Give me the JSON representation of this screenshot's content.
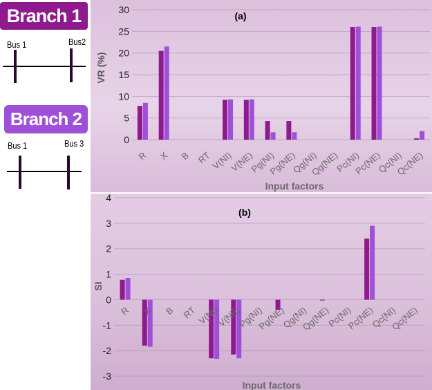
{
  "diagram": {
    "branch1": {
      "title": "Branch 1",
      "bus_left": "Bus 1",
      "bus_right": "Bus2",
      "color": "#8e1a8e"
    },
    "branch2": {
      "title": "Branch 2",
      "bus_left": "Bus 1",
      "bus_right": "Bus 3",
      "color": "#9f4fd8"
    }
  },
  "chart_data": [
    {
      "type": "bar",
      "title": "(a)",
      "xlabel": "Input factors",
      "ylabel": "VR (%)",
      "ylim": [
        0,
        30
      ],
      "yticks": [
        "0",
        "5",
        "10",
        "15",
        "20",
        "25",
        "30"
      ],
      "categories": [
        "R",
        "X",
        "B",
        "RT",
        "V(NI)",
        "V(NE)",
        "Pg(NI)",
        "Pg(NE)",
        "Qg(NI)",
        "Qg(NE)",
        "Pc(NI)",
        "Pc(NE)",
        "Qc(NI)",
        "Qc(NE)"
      ],
      "series": [
        {
          "name": "Branch 1",
          "color": "#8e1a8e",
          "values": [
            7.8,
            20.5,
            0,
            0,
            9.2,
            9.2,
            4.3,
            4.3,
            0,
            0,
            26.0,
            26.0,
            0,
            0.3
          ]
        },
        {
          "name": "Branch 2",
          "color": "#9f4fd8",
          "values": [
            8.5,
            21.5,
            0,
            0,
            9.3,
            9.3,
            1.7,
            1.7,
            0,
            0,
            26.1,
            26.1,
            0,
            2.0
          ]
        }
      ]
    },
    {
      "type": "bar",
      "title": "(b)",
      "xlabel": "Input factors",
      "ylabel": "SI",
      "ylim": [
        -3,
        4
      ],
      "yticks": [
        "-3",
        "-2",
        "-1",
        "0",
        "1",
        "2",
        "3",
        "4"
      ],
      "categories": [
        "R",
        "X",
        "B",
        "RT",
        "V(NI)",
        "V(NE)",
        "Pg(NI)",
        "Pg(NE)",
        "Qg(NI)",
        "Qg(NE)",
        "Pc(NI)",
        "Pc(NE)",
        "Qc(NI)",
        "Qc(NE)"
      ],
      "series": [
        {
          "name": "Branch 1",
          "color": "#8e1a8e",
          "values": [
            0.78,
            -1.8,
            0,
            0,
            -2.3,
            -2.15,
            0,
            -0.4,
            0,
            -0.03,
            0,
            2.4,
            0,
            0
          ]
        },
        {
          "name": "Branch 2",
          "color": "#9f4fd8",
          "values": [
            0.85,
            -1.85,
            0,
            0,
            -2.32,
            -2.3,
            0,
            0,
            0,
            0,
            0,
            2.9,
            0,
            0
          ]
        }
      ]
    }
  ]
}
